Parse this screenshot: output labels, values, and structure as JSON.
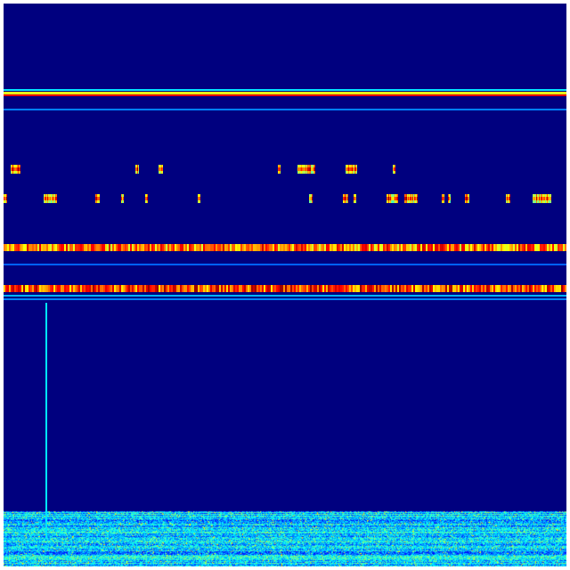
{
  "chart_data": {
    "type": "heatmap",
    "colormap": "jet",
    "value_range": [
      0,
      1
    ],
    "rows": 632,
    "cols": 632,
    "background_value": 0.0,
    "grid": false,
    "axes_visible": false,
    "title": "",
    "horizontal_bands": [
      {
        "row_start": 96,
        "row_end": 98,
        "value": 0.35
      },
      {
        "row_start": 99,
        "row_end": 102,
        "value": 0.6
      },
      {
        "row_start": 102,
        "row_end": 104,
        "value": 0.9
      },
      {
        "row_start": 118,
        "row_end": 120,
        "value": 0.25
      },
      {
        "row_start": 270,
        "row_end": 278,
        "value": 0.75,
        "textured": true
      },
      {
        "row_start": 292,
        "row_end": 294,
        "value": 0.22
      },
      {
        "row_start": 316,
        "row_end": 324,
        "value": 0.8,
        "textured": true
      },
      {
        "row_start": 327,
        "row_end": 329,
        "value": 0.3
      },
      {
        "row_start": 331,
        "row_end": 333,
        "value": 0.25
      }
    ],
    "sparse_block_rows": [
      {
        "row_start": 181,
        "row_end": 191,
        "col_ranges": [
          [
            8,
            18
          ],
          [
            148,
            151
          ],
          [
            174,
            178
          ],
          [
            308,
            310
          ],
          [
            330,
            349
          ],
          [
            384,
            396
          ],
          [
            437,
            439
          ]
        ]
      },
      {
        "row_start": 214,
        "row_end": 224,
        "col_ranges": [
          [
            0,
            3
          ],
          [
            45,
            59
          ],
          [
            103,
            107
          ],
          [
            132,
            134
          ],
          [
            159,
            161
          ],
          [
            218,
            220
          ],
          [
            343,
            346
          ],
          [
            381,
            386
          ],
          [
            393,
            395
          ],
          [
            430,
            442
          ],
          [
            450,
            464
          ],
          [
            492,
            494
          ],
          [
            499,
            501
          ],
          [
            518,
            522
          ],
          [
            564,
            568
          ],
          [
            594,
            614
          ]
        ]
      }
    ],
    "vertical_lines": [
      {
        "col": 47,
        "row_start": 336,
        "row_end": 600,
        "value": 0.35
      }
    ],
    "noisy_region": {
      "row_start": 570,
      "row_end": 632,
      "mean_value": 0.25,
      "peak_value": 0.7
    }
  }
}
